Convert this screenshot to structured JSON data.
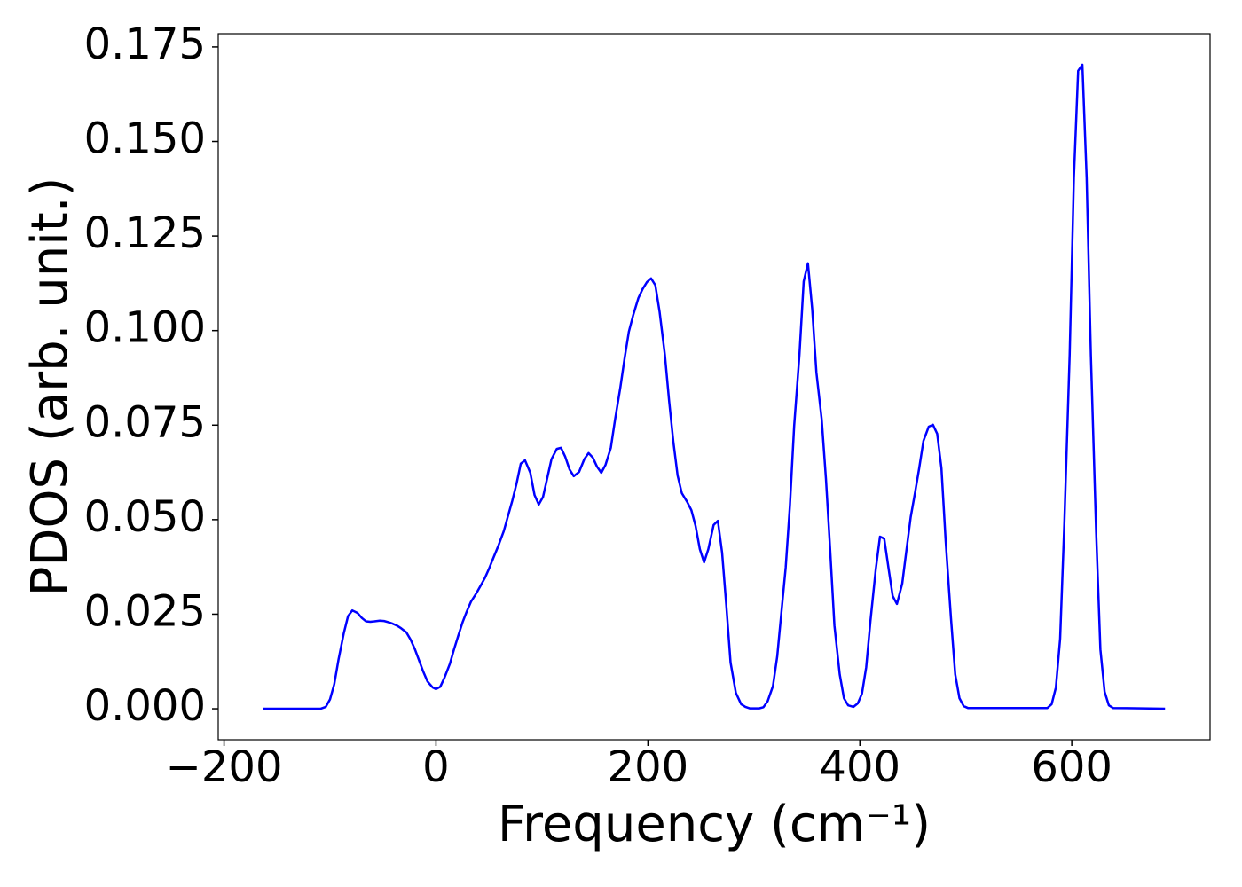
{
  "chart_data": {
    "type": "line",
    "x_label": "Frequency (cm⁻¹)",
    "y_label": "PDOS (arb. unit.)",
    "color": "#0000ff",
    "xlim": [
      -205.5,
      730.5
    ],
    "ylim": [
      -0.0082,
      0.1785
    ],
    "xticks": [
      {
        "value": -200,
        "label": "−200"
      },
      0,
      200,
      400,
      600
    ],
    "yticks": [
      {
        "value": 0,
        "label": "0.000"
      },
      0.025,
      {
        "value": 0.05,
        "label": "0.050"
      },
      0.075,
      {
        "value": 0.1,
        "label": "0.100"
      },
      0.125,
      {
        "value": 0.15,
        "label": "0.150"
      },
      0.175
    ],
    "x": [
      -163,
      -109,
      -104,
      -100,
      -96,
      -92,
      -87,
      -83,
      -79,
      -74,
      -70,
      -66,
      -62,
      -58,
      -53,
      -49,
      -45,
      -41,
      -37,
      -33,
      -28,
      -24,
      -20,
      -16,
      -12,
      -8,
      -3,
      0,
      4,
      8,
      13,
      17,
      21,
      25,
      29,
      33,
      38,
      42,
      46,
      50,
      54,
      59,
      64,
      68,
      72,
      76,
      80,
      84,
      89,
      93,
      97,
      101,
      105,
      109,
      114,
      118,
      122,
      126,
      130,
      135,
      140,
      144,
      148,
      152,
      156,
      160,
      165,
      169,
      174,
      178,
      182,
      186,
      191,
      195,
      199,
      203,
      207,
      211,
      216,
      220,
      224,
      228,
      232,
      237,
      241,
      245,
      249,
      253,
      257,
      262,
      266,
      270,
      274,
      278,
      283,
      288,
      292,
      296,
      301,
      305,
      309,
      313,
      318,
      322,
      326,
      330,
      334,
      338,
      343,
      347,
      351,
      355,
      359,
      364,
      368,
      372,
      376,
      381,
      385,
      389,
      394,
      398,
      402,
      406,
      410,
      415,
      419,
      423,
      427,
      431,
      435,
      440,
      444,
      448,
      452,
      456,
      460,
      465,
      469,
      473,
      477,
      481,
      486,
      490,
      494,
      498,
      502,
      577,
      581,
      585,
      589,
      593,
      598,
      602,
      606,
      610,
      614,
      618,
      623,
      627,
      631,
      635,
      639,
      688
    ],
    "values": [
      0,
      0,
      0.0005,
      0.0025,
      0.0065,
      0.013,
      0.02,
      0.0245,
      0.026,
      0.0253,
      0.024,
      0.0231,
      0.023,
      0.0231,
      0.0233,
      0.0232,
      0.0229,
      0.0225,
      0.022,
      0.0213,
      0.0202,
      0.0183,
      0.0158,
      0.0128,
      0.0098,
      0.0072,
      0.0056,
      0.0052,
      0.0058,
      0.0082,
      0.0118,
      0.0157,
      0.0193,
      0.0228,
      0.0257,
      0.0283,
      0.0305,
      0.0325,
      0.0345,
      0.037,
      0.0398,
      0.0432,
      0.047,
      0.051,
      0.055,
      0.0595,
      0.0648,
      0.0657,
      0.0624,
      0.0565,
      0.054,
      0.056,
      0.061,
      0.066,
      0.0687,
      0.069,
      0.0666,
      0.0633,
      0.0615,
      0.0626,
      0.066,
      0.0676,
      0.0664,
      0.064,
      0.0624,
      0.0645,
      0.069,
      0.0765,
      0.085,
      0.0927,
      0.0997,
      0.104,
      0.1086,
      0.111,
      0.1128,
      0.1138,
      0.112,
      0.105,
      0.0936,
      0.0814,
      0.0706,
      0.0617,
      0.057,
      0.0547,
      0.0525,
      0.0483,
      0.0422,
      0.0387,
      0.0422,
      0.0486,
      0.0497,
      0.0413,
      0.0272,
      0.0122,
      0.0042,
      0.0012,
      0.0005,
      0.0001,
      0.0001,
      0.0001,
      0.0004,
      0.002,
      0.006,
      0.0138,
      0.0256,
      0.0373,
      0.0537,
      0.0748,
      0.0936,
      0.113,
      0.1178,
      0.1058,
      0.0889,
      0.0765,
      0.0608,
      0.042,
      0.022,
      0.0091,
      0.0028,
      0.0009,
      0.0005,
      0.0014,
      0.004,
      0.011,
      0.0232,
      0.0368,
      0.0455,
      0.045,
      0.0373,
      0.0298,
      0.0277,
      0.0331,
      0.042,
      0.0507,
      0.057,
      0.0636,
      0.0708,
      0.0746,
      0.0751,
      0.0727,
      0.0636,
      0.0443,
      0.0239,
      0.0091,
      0.0028,
      0.0007,
      0.0002,
      0.0002,
      0.0012,
      0.0056,
      0.0185,
      0.049,
      0.0936,
      0.1405,
      0.1687,
      0.1703,
      0.1405,
      0.0936,
      0.0467,
      0.0157,
      0.0045,
      0.0009,
      0.0002,
      0
    ]
  }
}
